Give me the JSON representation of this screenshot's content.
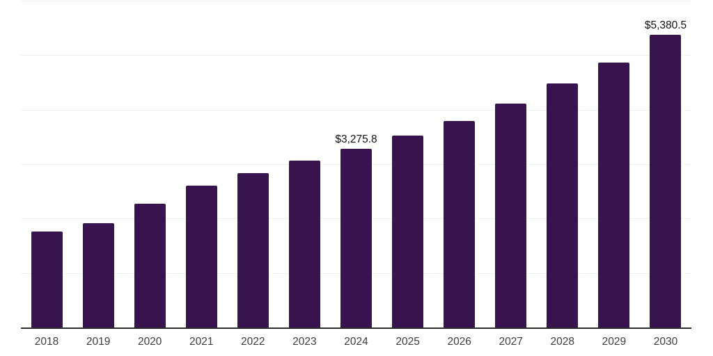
{
  "chart_data": {
    "type": "bar",
    "title": "",
    "xlabel": "",
    "ylabel": "",
    "categories": [
      "2018",
      "2019",
      "2020",
      "2021",
      "2022",
      "2023",
      "2024",
      "2025",
      "2026",
      "2027",
      "2028",
      "2029",
      "2030"
    ],
    "values": [
      1760,
      1910,
      2275,
      2610,
      2840,
      3060,
      3275.8,
      3525,
      3795,
      4115,
      4480,
      4870,
      5380.5
    ],
    "ylim": [
      0,
      6000
    ],
    "gridline_step": 1000,
    "grid": "horizontal",
    "legend_position": "none",
    "y_tick_labels_visible": false,
    "data_labels": [
      {
        "category": "2024",
        "text": "$3,275.8"
      },
      {
        "category": "2030",
        "text": "$5,380.5"
      }
    ]
  },
  "style": {
    "bar_color": "#38134E",
    "gridline_color": "#f0f0f0",
    "axis_line_color": "#2b2b2b",
    "tick_label_color": "#3d3d3d",
    "data_label_color": "#111111",
    "background_color": "#ffffff"
  }
}
